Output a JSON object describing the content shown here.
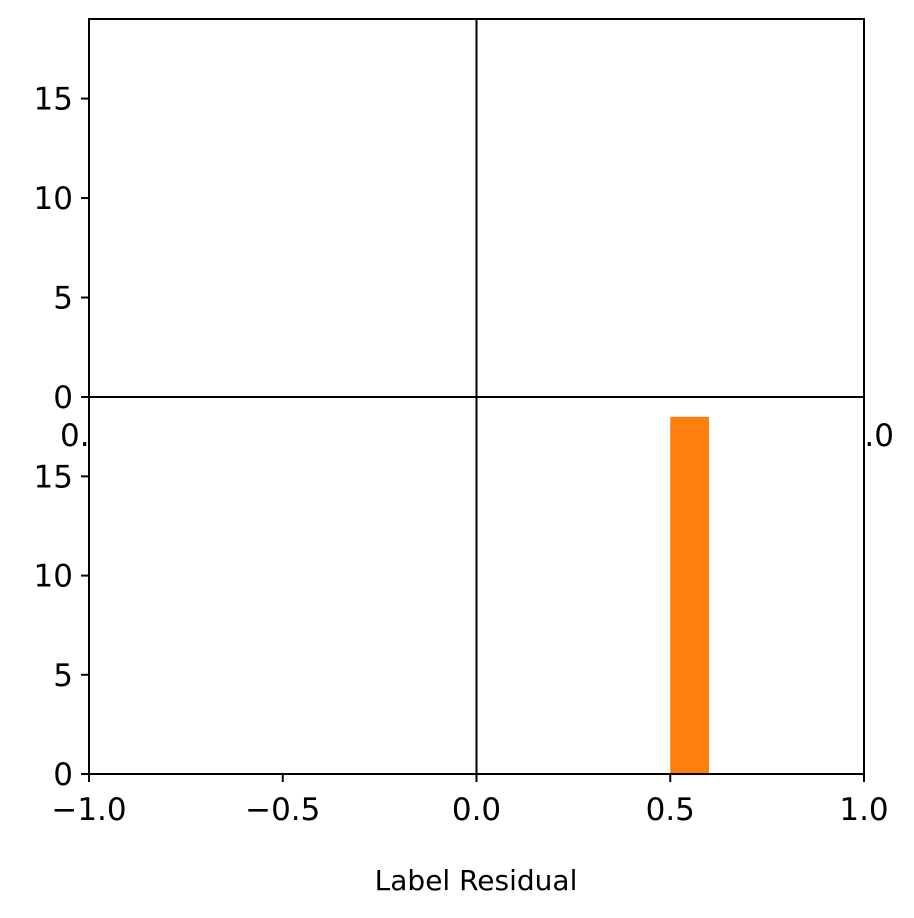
{
  "chart_data": [
    {
      "type": "bar",
      "panel": "top",
      "xlim": [
        -1.0,
        1.0
      ],
      "ylim": [
        0,
        19
      ],
      "yticks": [
        0,
        5,
        10,
        15
      ],
      "ytick_labels": [
        "0",
        "5",
        "10",
        "15"
      ],
      "bars": [],
      "overlapped_xtick_fragments": {
        "left": "0.",
        "right": ".0"
      }
    },
    {
      "type": "bar",
      "panel": "bottom",
      "xlim": [
        -1.0,
        1.0
      ],
      "ylim": [
        0,
        19
      ],
      "yticks": [
        0,
        5,
        10,
        15
      ],
      "ytick_labels": [
        "0",
        "5",
        "10",
        "15"
      ],
      "xticks": [
        -1.0,
        -0.5,
        0.0,
        0.5,
        1.0
      ],
      "xtick_labels": [
        "−1.0",
        "−0.5",
        "0.0",
        "0.5",
        "1.0"
      ],
      "xlabel": "Label Residual",
      "bars": [
        {
          "x_start": 0.5,
          "x_end": 0.6,
          "value": 18
        }
      ],
      "bar_color": "#ff7f0e"
    }
  ],
  "vertical_reference_x": 0.0,
  "colors": {
    "bar": "#ff7f0e",
    "axis": "#000000"
  }
}
